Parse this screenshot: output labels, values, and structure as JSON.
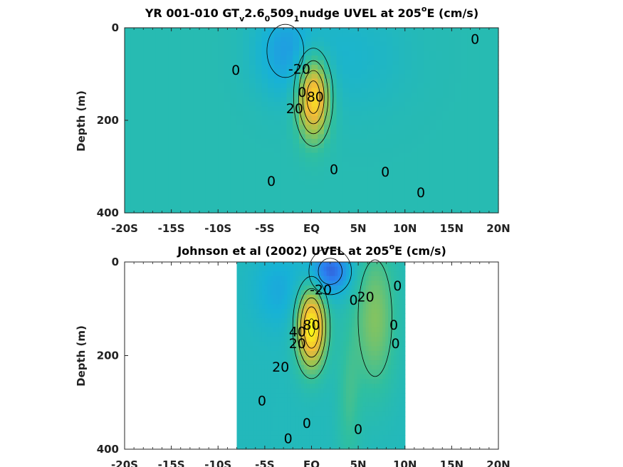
{
  "chart_data": [
    {
      "type": "heatmap",
      "title_parts": {
        "a": "YR 001-010 GT",
        "b": "v",
        "c": "2.6",
        "d": "0",
        "e": "509",
        "f": "1",
        "g": "nudge UVEL at 205",
        "h": "o",
        "i": "E (cm/s)"
      },
      "ylabel": "Depth (m)",
      "ylim": [
        0,
        400
      ],
      "xlim": [
        -20,
        20
      ],
      "x_ticks": [
        -20,
        -15,
        -10,
        -5,
        0,
        5,
        10,
        15,
        20
      ],
      "x_tick_labels": [
        "-20S",
        "-15S",
        "-10S",
        "-5S",
        "EQ",
        "5N",
        "10N",
        "15N",
        "20N"
      ],
      "y_ticks": [
        0,
        200,
        400
      ],
      "y_tick_labels": [
        "0",
        "200",
        "400"
      ],
      "colormap": [
        "#3e26a8",
        "#2c7ff1",
        "#17b2d6",
        "#2fbfa0",
        "#9bc44f",
        "#f3b838",
        "#f9fb14"
      ],
      "value_range": [
        -80,
        100
      ],
      "background_value": 0,
      "features": [
        {
          "name": "undercurrent-core",
          "x": 0.2,
          "depth": 150,
          "sx": 1.2,
          "sd": 60,
          "value": 95
        },
        {
          "name": "south-westward-flow",
          "x": -2.8,
          "depth": 50,
          "sx": 2.4,
          "sd": 70,
          "value": -28
        },
        {
          "name": "north-westward-flow",
          "x": 4.0,
          "depth": 60,
          "sx": 4.5,
          "sd": 90,
          "value": -14
        }
      ],
      "contour_labels": [
        {
          "text": "0",
          "x": -8.1,
          "depth": 92
        },
        {
          "text": "-20",
          "x": -1.3,
          "depth": 90
        },
        {
          "text": "0",
          "x": -1.0,
          "depth": 140
        },
        {
          "text": "80",
          "x": 0.4,
          "depth": 150
        },
        {
          "text": "20",
          "x": -1.8,
          "depth": 175
        },
        {
          "text": "0",
          "x": 2.4,
          "depth": 307
        },
        {
          "text": "0",
          "x": -4.3,
          "depth": 332
        },
        {
          "text": "0",
          "x": 7.9,
          "depth": 312
        },
        {
          "text": "0",
          "x": 11.7,
          "depth": 357
        },
        {
          "text": "0",
          "x": 17.5,
          "depth": 25
        }
      ]
    },
    {
      "type": "heatmap",
      "title_parts": {
        "a": "Johnson et al (2002) UVEL at 205",
        "h": "o",
        "i": "E (cm/s)"
      },
      "ylabel": "Depth (m)",
      "ylim": [
        0,
        400
      ],
      "xlim": [
        -20,
        20
      ],
      "data_xlim": [
        -8,
        10
      ],
      "x_ticks": [
        -20,
        -15,
        -10,
        -5,
        0,
        5,
        10,
        15,
        20
      ],
      "x_tick_labels": [
        "-20S",
        "-15S",
        "-10S",
        "-5S",
        "EQ",
        "5N",
        "10N",
        "15N",
        "20N"
      ],
      "y_ticks": [
        0,
        200,
        400
      ],
      "y_tick_labels": [
        "0",
        "200",
        "400"
      ],
      "value_range": [
        -80,
        100
      ],
      "background_value": -5,
      "features": [
        {
          "name": "undercurrent-core",
          "x": 0.0,
          "depth": 140,
          "sx": 1.1,
          "sd": 60,
          "value": 105
        },
        {
          "name": "surface-westward-flow",
          "x": 2.0,
          "depth": 20,
          "sx": 1.6,
          "sd": 35,
          "value": -55
        },
        {
          "name": "northern-eastward-flow",
          "x": 6.8,
          "depth": 120,
          "sx": 1.6,
          "sd": 110,
          "value": 38
        },
        {
          "name": "south-westward-flow",
          "x": -3.5,
          "depth": 60,
          "sx": 2.0,
          "sd": 60,
          "value": -20
        },
        {
          "name": "deep-eastward-jet",
          "x": 4.0,
          "depth": 300,
          "sx": 0.9,
          "sd": 110,
          "value": 18
        }
      ],
      "contour_labels": [
        {
          "text": "-20",
          "x": 1.0,
          "depth": 60
        },
        {
          "text": "0",
          "x": 4.5,
          "depth": 82
        },
        {
          "text": "20",
          "x": 5.8,
          "depth": 75
        },
        {
          "text": "0",
          "x": 9.2,
          "depth": 52
        },
        {
          "text": "0",
          "x": 8.8,
          "depth": 135
        },
        {
          "text": "40",
          "x": -1.5,
          "depth": 150
        },
        {
          "text": "80",
          "x": 0.0,
          "depth": 135
        },
        {
          "text": "0",
          "x": 9.0,
          "depth": 175
        },
        {
          "text": "20",
          "x": -1.5,
          "depth": 175
        },
        {
          "text": "20",
          "x": -3.3,
          "depth": 225
        },
        {
          "text": "0",
          "x": -5.3,
          "depth": 297
        },
        {
          "text": "0",
          "x": -0.5,
          "depth": 345
        },
        {
          "text": "0",
          "x": 5.0,
          "depth": 358
        },
        {
          "text": "0",
          "x": -2.5,
          "depth": 378
        }
      ]
    }
  ]
}
